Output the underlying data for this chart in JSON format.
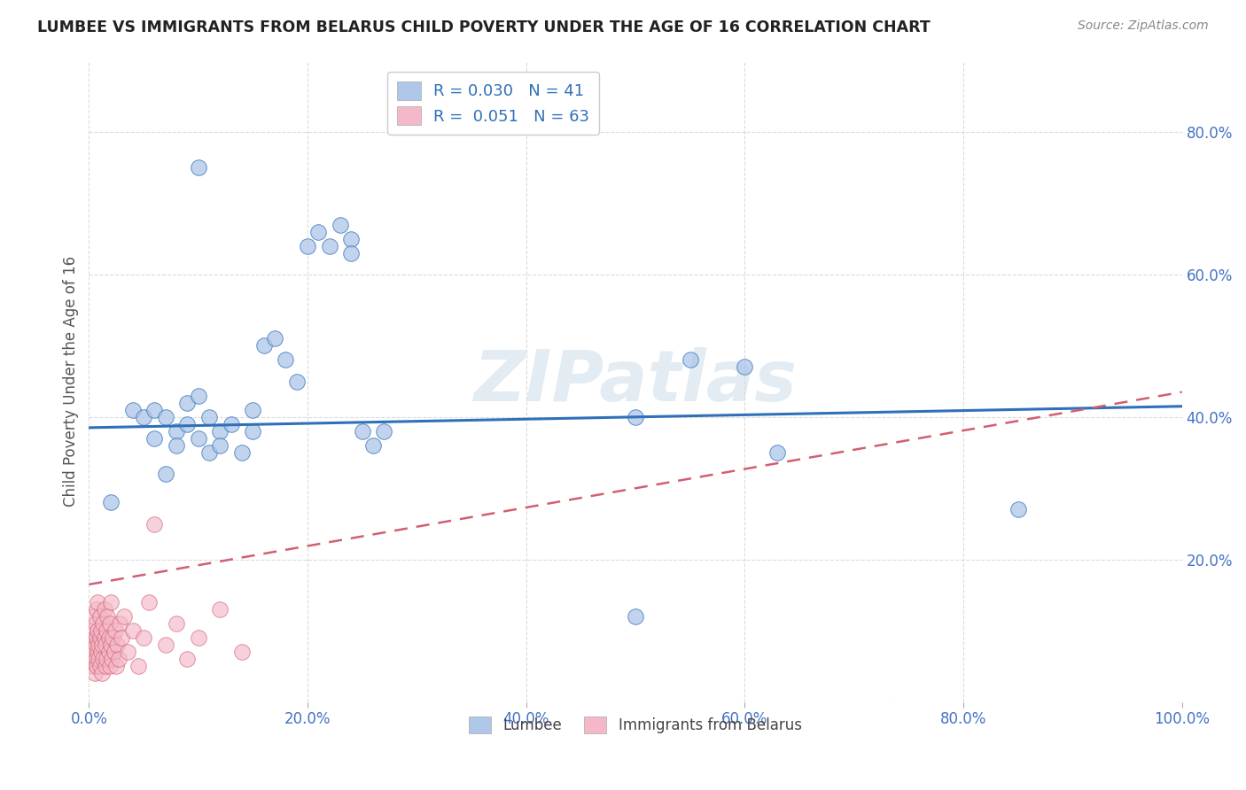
{
  "title": "LUMBEE VS IMMIGRANTS FROM BELARUS CHILD POVERTY UNDER THE AGE OF 16 CORRELATION CHART",
  "source": "Source: ZipAtlas.com",
  "ylabel": "Child Poverty Under the Age of 16",
  "legend_label1": "Lumbee",
  "legend_label2": "Immigrants from Belarus",
  "R1": 0.03,
  "N1": 41,
  "R2": 0.051,
  "N2": 63,
  "color1": "#aec6e8",
  "color2": "#f5b8c8",
  "line_color1": "#3070b8",
  "line_color2": "#d06070",
  "background": "#ffffff",
  "xlim": [
    0.0,
    1.0
  ],
  "ylim": [
    0.0,
    0.9
  ],
  "xticks": [
    0.0,
    0.2,
    0.4,
    0.6,
    0.8,
    1.0
  ],
  "yticks": [
    0.0,
    0.2,
    0.4,
    0.6,
    0.8
  ],
  "xticklabels": [
    "0.0%",
    "20.0%",
    "40.0%",
    "60.0%",
    "80.0%",
    "100.0%"
  ],
  "yticklabels": [
    "",
    "20.0%",
    "40.0%",
    "60.0%",
    "80.0%"
  ],
  "scatter1_x": [
    0.02,
    0.04,
    0.05,
    0.06,
    0.06,
    0.07,
    0.07,
    0.08,
    0.08,
    0.09,
    0.09,
    0.1,
    0.1,
    0.11,
    0.11,
    0.12,
    0.12,
    0.13,
    0.14,
    0.15,
    0.15,
    0.16,
    0.17,
    0.18,
    0.19,
    0.2,
    0.21,
    0.22,
    0.23,
    0.24,
    0.24,
    0.25,
    0.26,
    0.27,
    0.5,
    0.55,
    0.6,
    0.63,
    0.85,
    0.5,
    0.1
  ],
  "scatter1_y": [
    0.28,
    0.41,
    0.4,
    0.37,
    0.41,
    0.32,
    0.4,
    0.38,
    0.36,
    0.42,
    0.39,
    0.37,
    0.43,
    0.4,
    0.35,
    0.38,
    0.36,
    0.39,
    0.35,
    0.41,
    0.38,
    0.5,
    0.51,
    0.48,
    0.45,
    0.64,
    0.66,
    0.64,
    0.67,
    0.65,
    0.63,
    0.38,
    0.36,
    0.38,
    0.4,
    0.48,
    0.47,
    0.35,
    0.27,
    0.12,
    0.75
  ],
  "scatter2_x": [
    0.001,
    0.002,
    0.003,
    0.003,
    0.004,
    0.004,
    0.005,
    0.005,
    0.006,
    0.006,
    0.006,
    0.007,
    0.007,
    0.007,
    0.008,
    0.008,
    0.008,
    0.009,
    0.009,
    0.01,
    0.01,
    0.01,
    0.011,
    0.011,
    0.012,
    0.012,
    0.013,
    0.013,
    0.014,
    0.014,
    0.015,
    0.015,
    0.016,
    0.016,
    0.017,
    0.018,
    0.018,
    0.019,
    0.019,
    0.02,
    0.02,
    0.021,
    0.022,
    0.023,
    0.024,
    0.025,
    0.026,
    0.027,
    0.028,
    0.03,
    0.032,
    0.035,
    0.04,
    0.045,
    0.05,
    0.055,
    0.06,
    0.07,
    0.08,
    0.09,
    0.1,
    0.12,
    0.14
  ],
  "scatter2_y": [
    0.08,
    0.06,
    0.05,
    0.1,
    0.07,
    0.12,
    0.04,
    0.09,
    0.06,
    0.11,
    0.08,
    0.05,
    0.09,
    0.13,
    0.07,
    0.1,
    0.14,
    0.06,
    0.08,
    0.05,
    0.09,
    0.12,
    0.07,
    0.1,
    0.04,
    0.08,
    0.06,
    0.11,
    0.09,
    0.13,
    0.05,
    0.08,
    0.06,
    0.1,
    0.12,
    0.07,
    0.09,
    0.05,
    0.11,
    0.08,
    0.14,
    0.06,
    0.09,
    0.07,
    0.1,
    0.05,
    0.08,
    0.06,
    0.11,
    0.09,
    0.12,
    0.07,
    0.1,
    0.05,
    0.09,
    0.14,
    0.25,
    0.08,
    0.11,
    0.06,
    0.09,
    0.13,
    0.07
  ],
  "watermark": "ZIPatlas",
  "watermark_color": "#c8d8e8",
  "tick_color": "#4472c4",
  "ylabel_color": "#555555",
  "title_color": "#222222",
  "source_color": "#888888",
  "grid_color": "#cccccc"
}
